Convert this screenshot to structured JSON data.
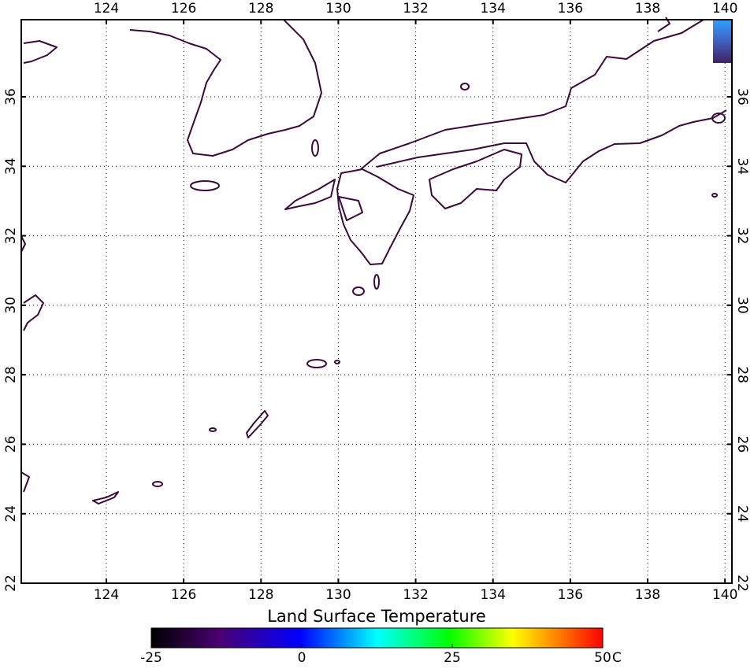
{
  "map": {
    "title": "Land Surface Temperature",
    "lonlim": [
      121.8,
      140.18
    ],
    "latlim": [
      22,
      38.22
    ],
    "lon_ticks": [
      124,
      126,
      128,
      130,
      132,
      134,
      136,
      138,
      140
    ],
    "lat_ticks": [
      22,
      24,
      26,
      28,
      30,
      32,
      34,
      36
    ],
    "colorbar": {
      "range": [
        -25,
        50
      ],
      "ticks": [
        -25,
        0,
        25,
        50
      ],
      "unit": "C"
    }
  }
}
